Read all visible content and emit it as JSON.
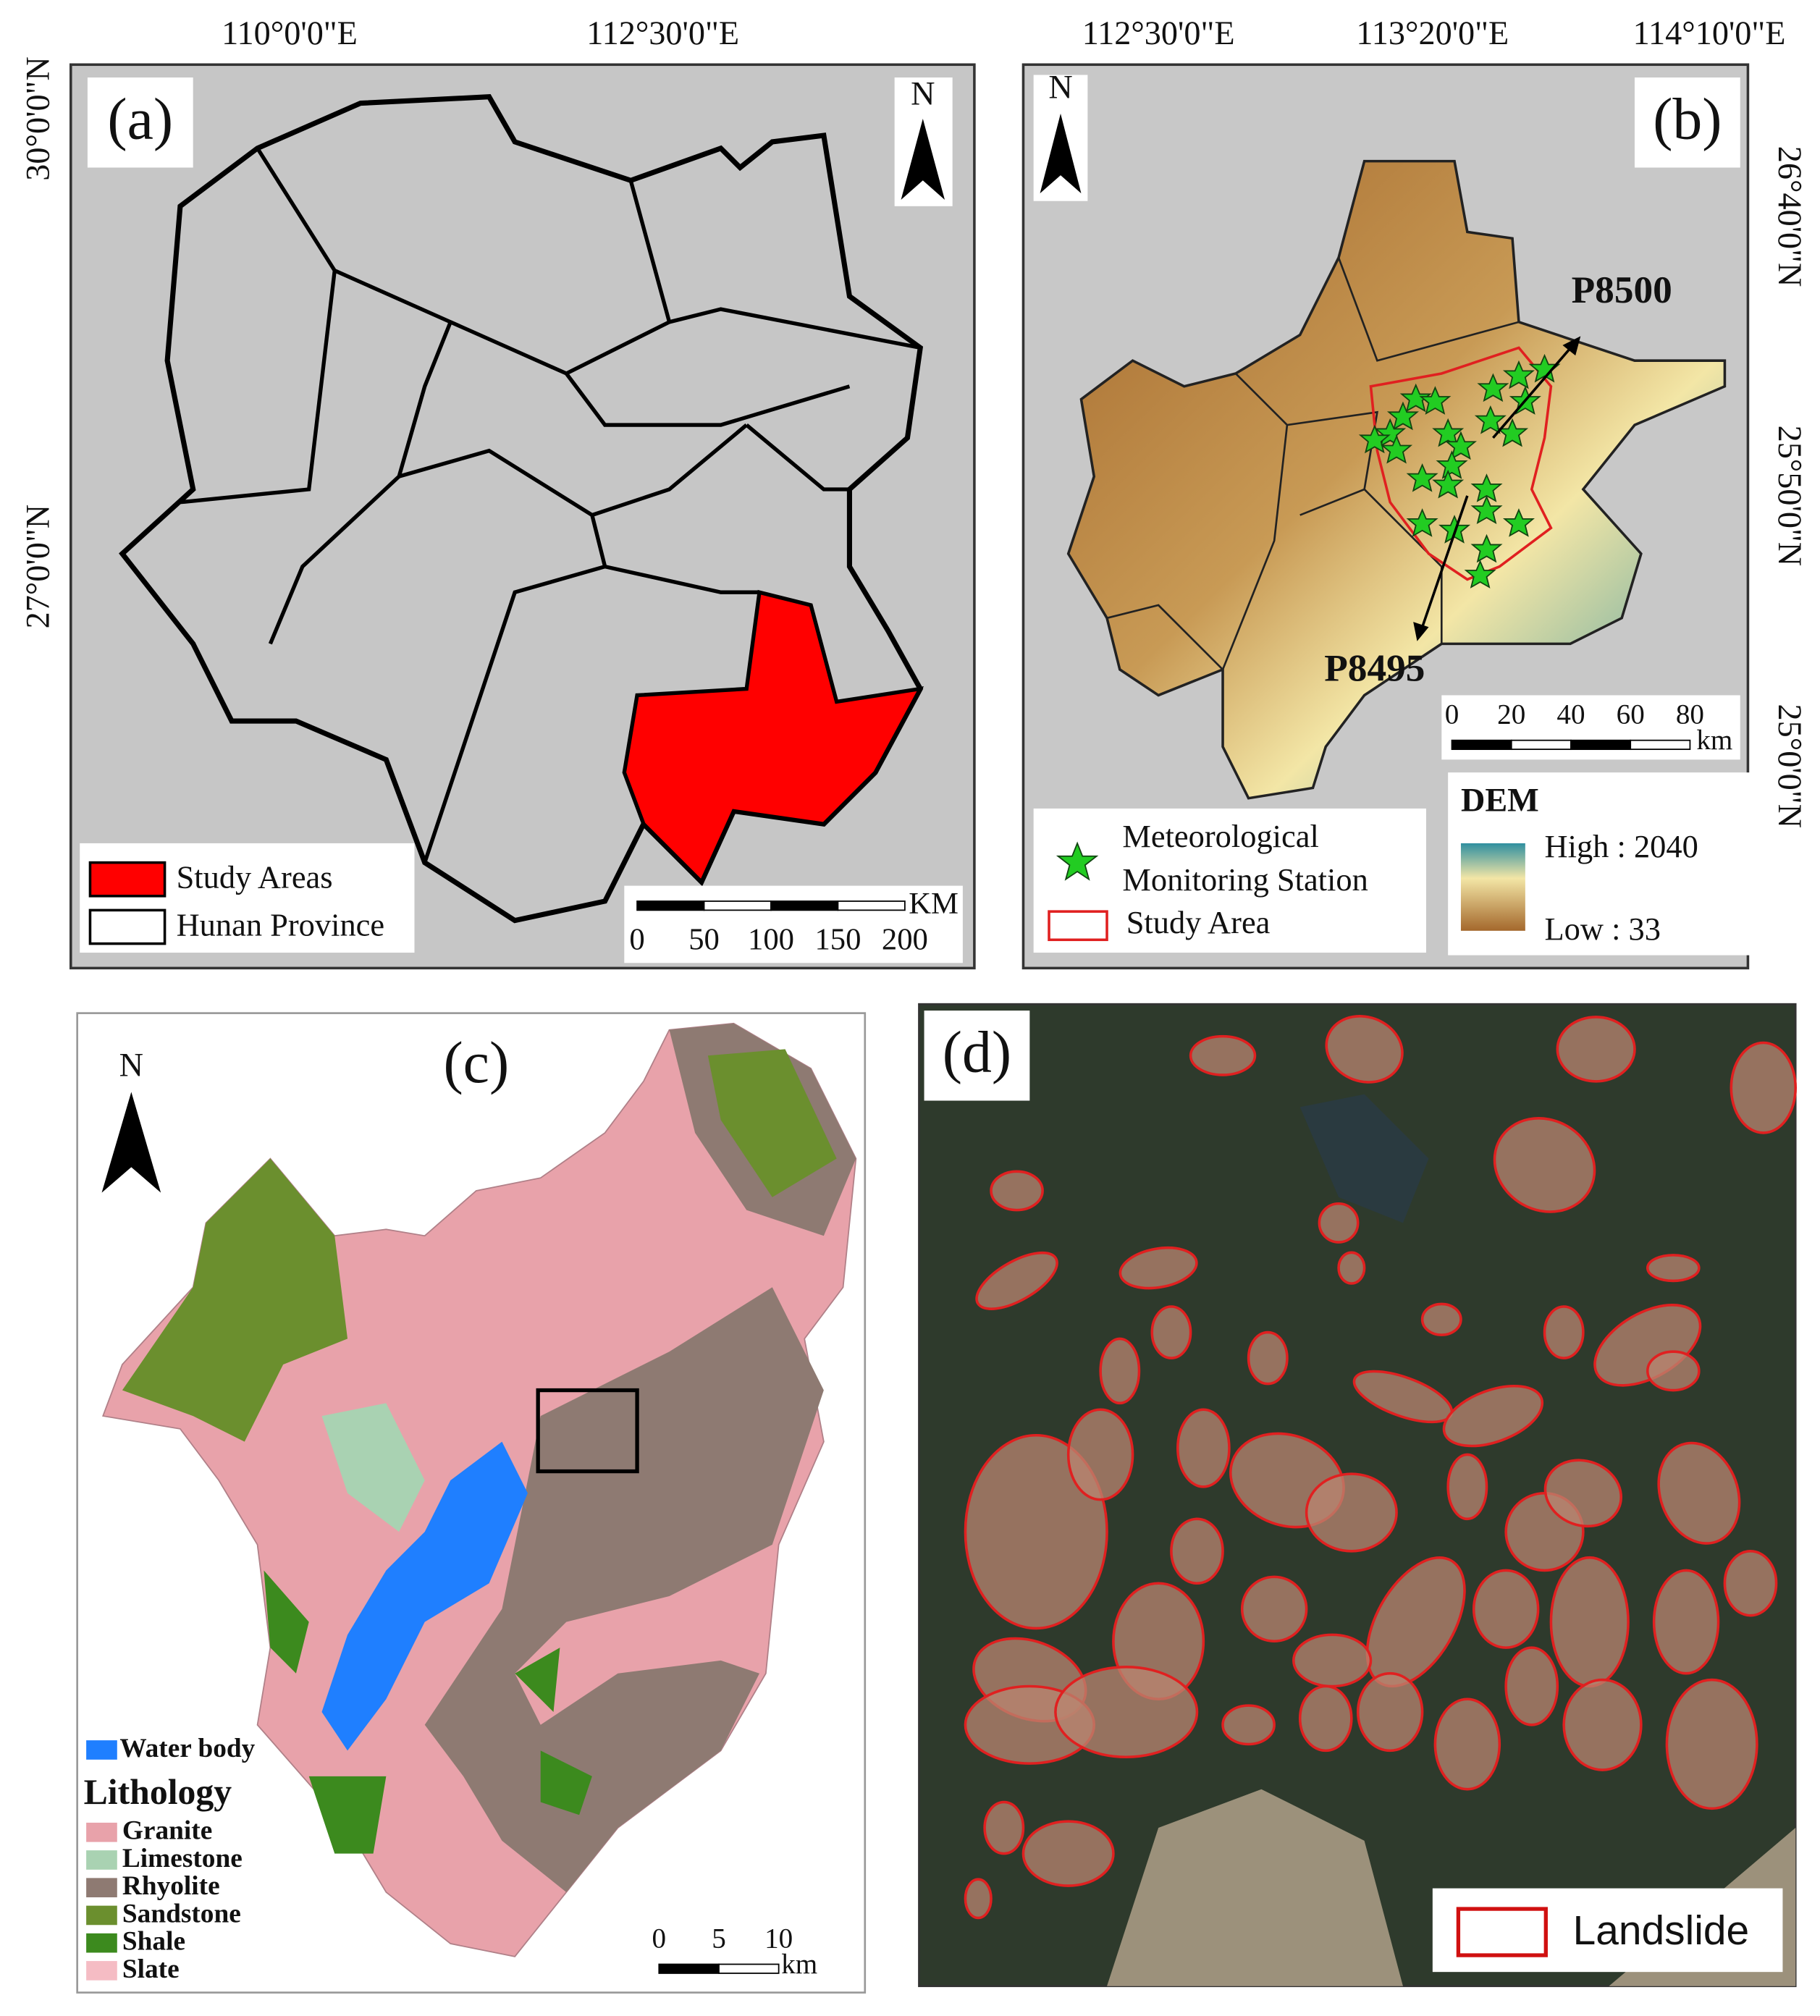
{
  "panel_a": {
    "label": "(a)",
    "north": "N",
    "lon_labels": [
      "110°0'0\"E",
      "112°30'0\"E"
    ],
    "lat_labels": [
      "30°0'0\"N",
      "27°0'0\"N"
    ],
    "legend": [
      "Study Areas",
      "Hunan Province"
    ],
    "scale_labels": [
      "0",
      "50",
      "100",
      "150",
      "200"
    ],
    "scale_unit": "KM"
  },
  "panel_b": {
    "label": "(b)",
    "north": "N",
    "lon_labels": [
      "112°30'0\"E",
      "113°20'0\"E",
      "114°10'0\"E"
    ],
    "lat_labels": [
      "26°40'0\"N",
      "25°50'0\"N",
      "25°0'0\"N"
    ],
    "stations": [
      "P8500",
      "P8495"
    ],
    "scale_labels": [
      "0",
      "20",
      "40",
      "60",
      "80"
    ],
    "scale_unit": "km",
    "legend": {
      "station": [
        "Meteorological",
        "Monitoring Station"
      ],
      "study_area": "Study Area"
    },
    "dem": {
      "title": "DEM",
      "high": "High : 2040",
      "low": "Low : 33"
    }
  },
  "panel_c": {
    "label": "(c)",
    "north": "N",
    "water": "Water body",
    "water_color": "#1f7fff",
    "lithology_title": "Lithology",
    "lithology": [
      {
        "name": "Granite",
        "color": "#e8a2aa"
      },
      {
        "name": "Limestone",
        "color": "#a9d2b2"
      },
      {
        "name": "Rhyolite",
        "color": "#8e7a72"
      },
      {
        "name": "Sandstone",
        "color": "#6b8f2e"
      },
      {
        "name": "Shale",
        "color": "#3c8a1e"
      },
      {
        "name": "Slate",
        "color": "#f5bcc4"
      }
    ],
    "scale_labels": [
      "0",
      "5",
      "10"
    ],
    "scale_unit": "km"
  },
  "panel_d": {
    "label": "(d)",
    "legend": "Landslide"
  }
}
